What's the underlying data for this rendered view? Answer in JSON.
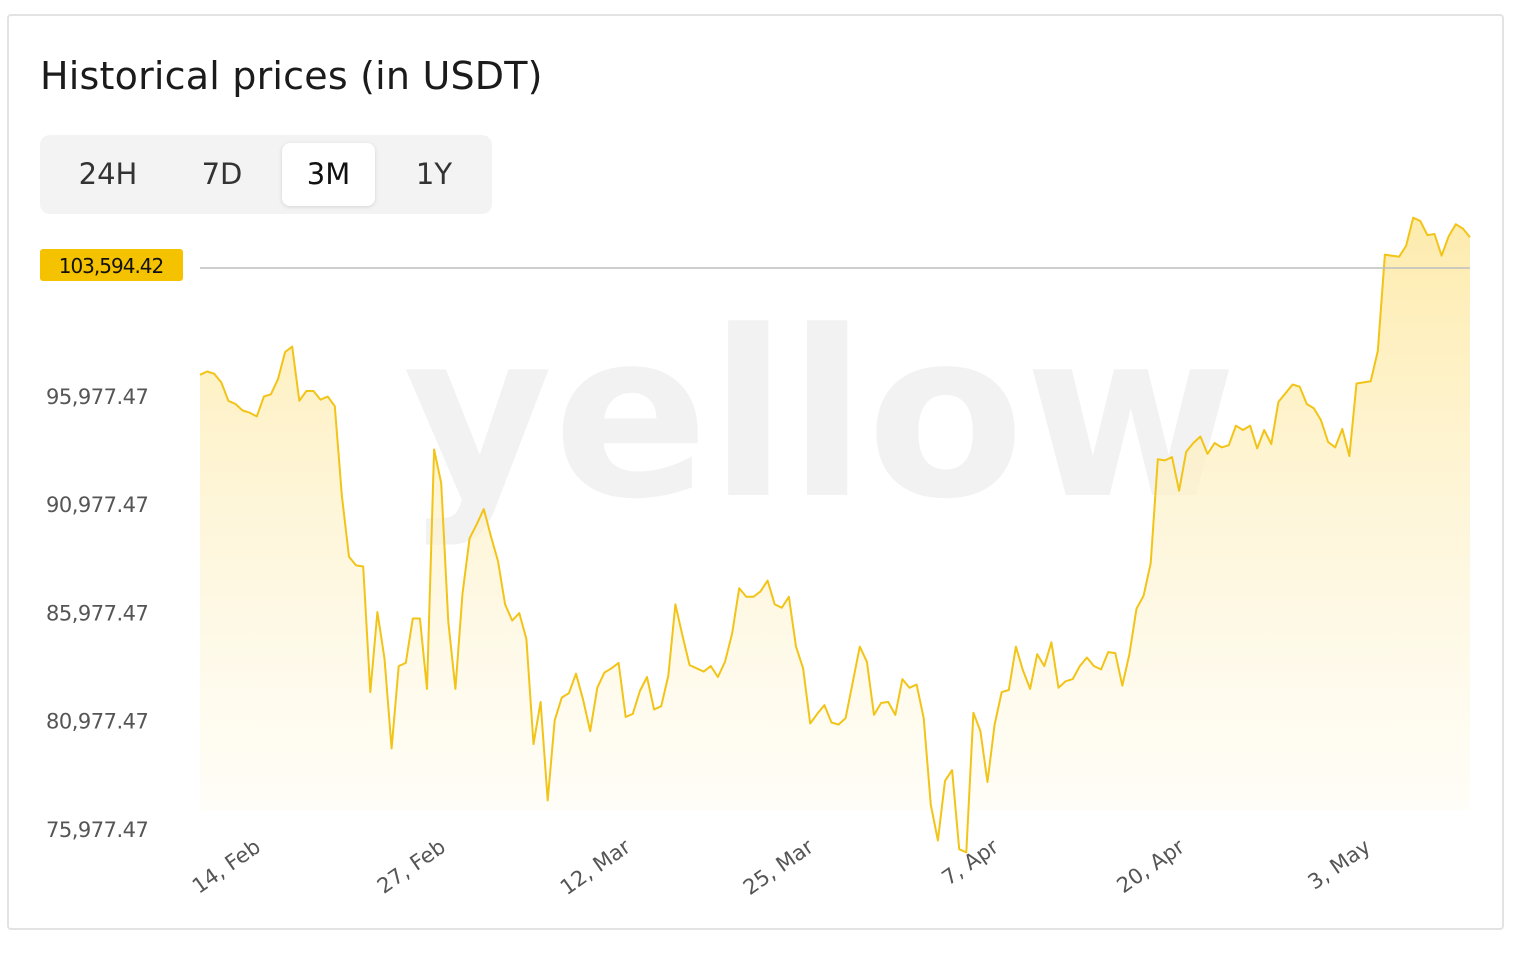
{
  "header": {
    "title": "Historical prices (in USDT)"
  },
  "tabs": [
    {
      "label": "24H",
      "active": false
    },
    {
      "label": "7D",
      "active": false
    },
    {
      "label": "3M",
      "active": true
    },
    {
      "label": "1Y",
      "active": false
    }
  ],
  "watermark": {
    "text": "yellow"
  },
  "current_price": {
    "label": "103,594.42"
  },
  "colors": {
    "accent": "#f5c200",
    "line": "#f2c417",
    "fill_top": "#fde9a4",
    "fill_bottom": "#fffdf6"
  },
  "chart_data": {
    "type": "area",
    "title": "Historical prices (in USDT)",
    "xlabel": "",
    "ylabel": "",
    "y_ticks": [
      {
        "value": 75977.47,
        "label": "75,977.47"
      },
      {
        "value": 80977.47,
        "label": "80,977.47"
      },
      {
        "value": 85977.47,
        "label": "85,977.47"
      },
      {
        "value": 90977.47,
        "label": "90,977.47"
      },
      {
        "value": 95977.47,
        "label": "95,977.47"
      }
    ],
    "x_ticks": [
      {
        "day": 5,
        "label": "14, Feb"
      },
      {
        "day": 18,
        "label": "27, Feb"
      },
      {
        "day": 31,
        "label": "12, Mar"
      },
      {
        "day": 44,
        "label": "25, Mar"
      },
      {
        "day": 57,
        "label": "7, Apr"
      },
      {
        "day": 70,
        "label": "20, Apr"
      },
      {
        "day": 83,
        "label": "3, May"
      }
    ],
    "ylim": [
      75977.47,
      104600
    ],
    "xlim": [
      0,
      90
    ],
    "series": [
      {
        "name": "",
        "x_unit": "days since 9 Feb",
        "points": [
          [
            0.0,
            96900
          ],
          [
            0.36,
            97050
          ],
          [
            0.72,
            96950
          ],
          [
            1.08,
            96550
          ],
          [
            1.44,
            95700
          ],
          [
            1.8,
            95550
          ],
          [
            2.16,
            95250
          ],
          [
            2.52,
            95150
          ],
          [
            2.88,
            94980
          ],
          [
            3.24,
            95900
          ],
          [
            3.6,
            96000
          ],
          [
            3.96,
            96700
          ],
          [
            4.32,
            97950
          ],
          [
            4.68,
            98200
          ],
          [
            5.04,
            95700
          ],
          [
            5.4,
            96150
          ],
          [
            5.76,
            96150
          ],
          [
            6.12,
            95750
          ],
          [
            6.48,
            95900
          ],
          [
            6.84,
            95450
          ],
          [
            7.2,
            91300
          ],
          [
            7.56,
            88500
          ],
          [
            7.92,
            88100
          ],
          [
            8.28,
            88050
          ],
          [
            8.64,
            82250
          ],
          [
            9.0,
            85950
          ],
          [
            9.36,
            83800
          ],
          [
            9.72,
            79650
          ],
          [
            10.08,
            83450
          ],
          [
            10.44,
            83600
          ],
          [
            10.8,
            85650
          ],
          [
            11.16,
            85650
          ],
          [
            11.52,
            82400
          ],
          [
            11.88,
            93450
          ],
          [
            12.24,
            91900
          ],
          [
            12.6,
            85500
          ],
          [
            12.96,
            82400
          ],
          [
            13.32,
            86800
          ],
          [
            13.68,
            89350
          ],
          [
            14.04,
            90000
          ],
          [
            14.4,
            90700
          ],
          [
            14.76,
            89450
          ],
          [
            15.12,
            88300
          ],
          [
            15.48,
            86300
          ],
          [
            15.84,
            85550
          ],
          [
            16.2,
            85900
          ],
          [
            16.56,
            84700
          ],
          [
            16.92,
            79850
          ],
          [
            17.28,
            81800
          ],
          [
            17.64,
            77250
          ],
          [
            18.0,
            80950
          ],
          [
            18.36,
            82000
          ],
          [
            18.72,
            82200
          ],
          [
            19.08,
            83100
          ],
          [
            19.44,
            81900
          ],
          [
            19.8,
            80450
          ],
          [
            20.16,
            82450
          ],
          [
            20.52,
            83150
          ],
          [
            20.88,
            83350
          ],
          [
            21.24,
            83600
          ],
          [
            21.6,
            81100
          ],
          [
            21.96,
            81250
          ],
          [
            22.32,
            82300
          ],
          [
            22.68,
            82950
          ],
          [
            23.04,
            81450
          ],
          [
            23.4,
            81600
          ],
          [
            23.76,
            83000
          ],
          [
            24.12,
            86300
          ],
          [
            24.48,
            84850
          ],
          [
            24.84,
            83500
          ],
          [
            25.2,
            83350
          ],
          [
            25.56,
            83200
          ],
          [
            25.92,
            83450
          ],
          [
            26.28,
            82950
          ],
          [
            26.64,
            83650
          ],
          [
            27.0,
            84950
          ],
          [
            27.36,
            87050
          ],
          [
            27.72,
            86650
          ],
          [
            28.08,
            86650
          ],
          [
            28.44,
            86900
          ],
          [
            28.8,
            87400
          ],
          [
            29.16,
            86300
          ],
          [
            29.52,
            86150
          ],
          [
            29.88,
            86650
          ],
          [
            30.24,
            84350
          ],
          [
            30.6,
            83350
          ],
          [
            30.96,
            80800
          ],
          [
            31.32,
            81250
          ],
          [
            31.68,
            81650
          ],
          [
            32.04,
            80850
          ],
          [
            32.4,
            80750
          ],
          [
            32.76,
            81050
          ],
          [
            33.12,
            82700
          ],
          [
            33.48,
            84350
          ],
          [
            33.84,
            83650
          ],
          [
            34.2,
            81200
          ],
          [
            34.56,
            81750
          ],
          [
            34.92,
            81800
          ],
          [
            35.28,
            81200
          ],
          [
            35.64,
            82850
          ],
          [
            36.0,
            82450
          ],
          [
            36.36,
            82600
          ],
          [
            36.72,
            81050
          ],
          [
            37.08,
            77050
          ],
          [
            37.44,
            75400
          ],
          [
            37.8,
            78150
          ],
          [
            38.16,
            78650
          ],
          [
            38.52,
            75000
          ],
          [
            38.88,
            74850
          ],
          [
            39.24,
            81300
          ],
          [
            39.6,
            80450
          ],
          [
            39.96,
            78100
          ],
          [
            40.32,
            80750
          ],
          [
            40.68,
            82250
          ],
          [
            41.04,
            82350
          ],
          [
            41.4,
            84350
          ],
          [
            41.76,
            83250
          ],
          [
            42.12,
            82400
          ],
          [
            42.48,
            84000
          ],
          [
            42.84,
            83450
          ],
          [
            43.2,
            84550
          ],
          [
            43.56,
            82450
          ],
          [
            43.92,
            82750
          ],
          [
            44.28,
            82850
          ],
          [
            44.64,
            83450
          ],
          [
            45.0,
            83850
          ],
          [
            45.36,
            83450
          ],
          [
            45.72,
            83300
          ],
          [
            46.08,
            84100
          ],
          [
            46.44,
            84050
          ],
          [
            46.8,
            82550
          ],
          [
            47.16,
            84000
          ],
          [
            47.52,
            86100
          ],
          [
            47.88,
            86700
          ],
          [
            48.24,
            88200
          ],
          [
            48.6,
            93000
          ],
          [
            48.96,
            92950
          ],
          [
            49.32,
            93100
          ],
          [
            49.68,
            91550
          ],
          [
            50.04,
            93350
          ],
          [
            50.4,
            93750
          ],
          [
            50.76,
            94050
          ],
          [
            51.12,
            93250
          ],
          [
            51.48,
            93750
          ],
          [
            51.84,
            93550
          ],
          [
            52.2,
            93650
          ],
          [
            52.56,
            94550
          ],
          [
            52.92,
            94350
          ],
          [
            53.28,
            94550
          ],
          [
            53.64,
            93500
          ],
          [
            54.0,
            94350
          ],
          [
            54.36,
            93700
          ],
          [
            54.72,
            95650
          ],
          [
            55.08,
            96050
          ],
          [
            55.44,
            96450
          ],
          [
            55.8,
            96350
          ],
          [
            56.16,
            95550
          ],
          [
            56.52,
            95350
          ],
          [
            56.88,
            94800
          ],
          [
            57.24,
            93800
          ],
          [
            57.6,
            93550
          ],
          [
            57.96,
            94400
          ],
          [
            58.32,
            93150
          ],
          [
            58.68,
            96500
          ],
          [
            59.04,
            96550
          ],
          [
            59.4,
            96600
          ],
          [
            59.76,
            98000
          ],
          [
            60.12,
            102450
          ],
          [
            60.48,
            102400
          ],
          [
            60.84,
            102350
          ],
          [
            61.2,
            102850
          ],
          [
            61.56,
            104150
          ],
          [
            61.92,
            104000
          ],
          [
            62.28,
            103350
          ],
          [
            62.64,
            103400
          ],
          [
            63.0,
            102400
          ],
          [
            63.36,
            103300
          ],
          [
            63.72,
            103850
          ],
          [
            64.08,
            103650
          ],
          [
            64.44,
            103250
          ]
        ]
      }
    ]
  }
}
